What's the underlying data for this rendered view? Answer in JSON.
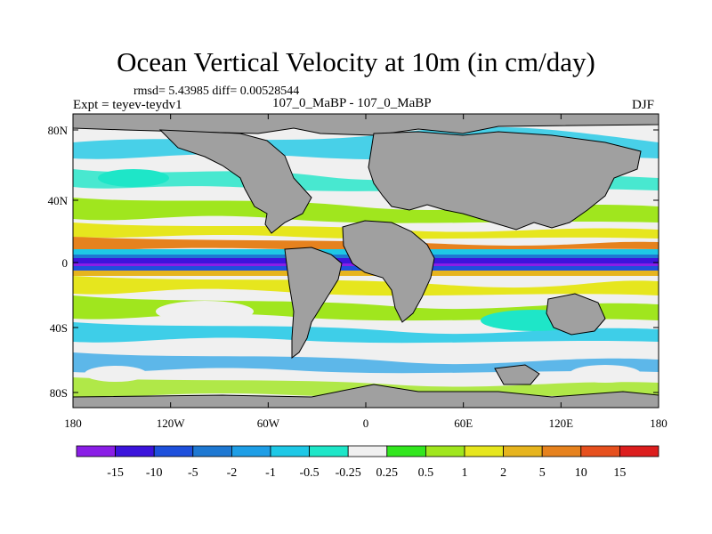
{
  "title": "Ocean Vertical Velocity at 10m (in cm/day)",
  "stats": "rmsd= 5.43985 diff= 0.00528544",
  "expt": "Expt = teyev-teydv1",
  "case": "107_0_MaBP - 107_0_MaBP",
  "season": "DJF",
  "y_ticks": [
    "80N",
    "40N",
    "0",
    "40S",
    "80S"
  ],
  "x_ticks": [
    "180",
    "120W",
    "60W",
    "0",
    "60E",
    "120E",
    "180"
  ],
  "colorbar": {
    "labels": [
      "-15",
      "-10",
      "-5",
      "-2",
      "-1",
      "-0.5",
      "-0.25",
      "0.25",
      "0.5",
      "1",
      "2",
      "5",
      "10",
      "15"
    ],
    "colors": [
      "#8a1ee6",
      "#3c14dc",
      "#1e50dc",
      "#1e78d2",
      "#1e9ee6",
      "#1ec8e6",
      "#1ee6c8",
      "#f0f0f0",
      "#32e61e",
      "#a0e61e",
      "#e6e61e",
      "#e6b41e",
      "#e6821e",
      "#e6501e",
      "#dc1e1e"
    ]
  },
  "land_color": "#a0a0a0"
}
